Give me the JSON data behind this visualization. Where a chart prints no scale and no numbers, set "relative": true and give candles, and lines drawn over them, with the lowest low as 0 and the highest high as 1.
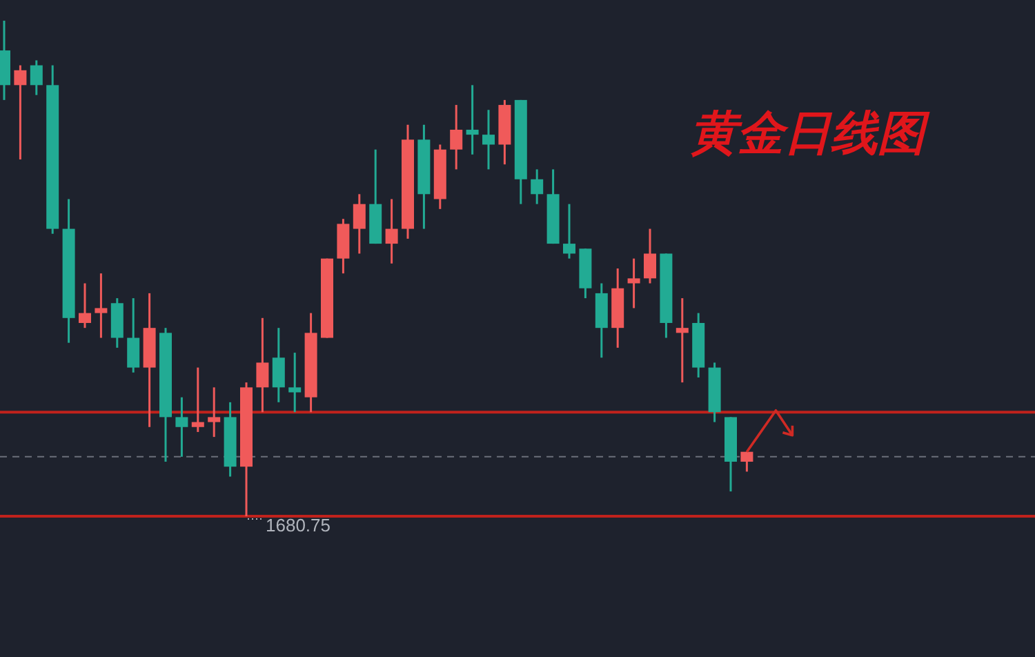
{
  "chart_data": {
    "type": "candlestick",
    "title": "黄金日线图",
    "relative": true,
    "categories": [
      null,
      null,
      null,
      null,
      null,
      null,
      null,
      null,
      null,
      null,
      null,
      null,
      null,
      null,
      null,
      null,
      null,
      null,
      null,
      null,
      null,
      null,
      null,
      null,
      null,
      null,
      null,
      null,
      null,
      null,
      null,
      null,
      null,
      null,
      null,
      null,
      null,
      null,
      null,
      null,
      null,
      null,
      null,
      null,
      null,
      null,
      null
    ],
    "ohlc": [
      [
        0.94,
        1.0,
        0.84,
        0.87
      ],
      [
        0.87,
        0.91,
        0.72,
        0.9
      ],
      [
        0.91,
        0.92,
        0.85,
        0.87
      ],
      [
        0.87,
        0.91,
        0.57,
        0.58
      ],
      [
        0.58,
        0.64,
        0.35,
        0.4
      ],
      [
        0.39,
        0.47,
        0.38,
        0.41
      ],
      [
        0.41,
        0.49,
        0.36,
        0.42
      ],
      [
        0.43,
        0.44,
        0.34,
        0.36
      ],
      [
        0.36,
        0.44,
        0.29,
        0.3
      ],
      [
        0.3,
        0.45,
        0.18,
        0.38
      ],
      [
        0.37,
        0.38,
        0.11,
        0.2
      ],
      [
        0.2,
        0.24,
        0.12,
        0.18
      ],
      [
        0.18,
        0.3,
        0.17,
        0.19
      ],
      [
        0.19,
        0.26,
        0.16,
        0.2
      ],
      [
        0.2,
        0.23,
        0.08,
        0.1
      ],
      [
        0.1,
        0.27,
        0.0,
        0.26
      ],
      [
        0.26,
        0.4,
        0.21,
        0.31
      ],
      [
        0.32,
        0.38,
        0.23,
        0.26
      ],
      [
        0.26,
        0.33,
        0.21,
        0.25
      ],
      [
        0.24,
        0.41,
        0.21,
        0.37
      ],
      [
        0.36,
        0.52,
        0.36,
        0.52
      ],
      [
        0.52,
        0.6,
        0.49,
        0.59
      ],
      [
        0.58,
        0.65,
        0.53,
        0.63
      ],
      [
        0.63,
        0.74,
        0.55,
        0.55
      ],
      [
        0.55,
        0.64,
        0.51,
        0.58
      ],
      [
        0.58,
        0.79,
        0.56,
        0.76
      ],
      [
        0.76,
        0.79,
        0.58,
        0.65
      ],
      [
        0.64,
        0.75,
        0.62,
        0.74
      ],
      [
        0.74,
        0.83,
        0.7,
        0.78
      ],
      [
        0.78,
        0.87,
        0.73,
        0.77
      ],
      [
        0.77,
        0.82,
        0.7,
        0.75
      ],
      [
        0.75,
        0.84,
        0.71,
        0.83
      ],
      [
        0.84,
        0.84,
        0.63,
        0.68
      ],
      [
        0.68,
        0.7,
        0.63,
        0.65
      ],
      [
        0.65,
        0.7,
        0.55,
        0.55
      ],
      [
        0.55,
        0.63,
        0.52,
        0.53
      ],
      [
        0.54,
        0.54,
        0.44,
        0.46
      ],
      [
        0.45,
        0.47,
        0.32,
        0.38
      ],
      [
        0.38,
        0.5,
        0.34,
        0.46
      ],
      [
        0.47,
        0.52,
        0.42,
        0.48
      ],
      [
        0.48,
        0.58,
        0.47,
        0.53
      ],
      [
        0.53,
        0.53,
        0.36,
        0.39
      ],
      [
        0.37,
        0.44,
        0.27,
        0.38
      ],
      [
        0.39,
        0.41,
        0.28,
        0.3
      ],
      [
        0.3,
        0.31,
        0.19,
        0.21
      ],
      [
        0.2,
        0.2,
        0.05,
        0.11
      ],
      [
        0.11,
        0.13,
        0.09,
        0.13
      ]
    ],
    "colors": [
      "#22ab94",
      "#f05a5a",
      "#22ab94",
      "#22ab94",
      "#22ab94",
      "#f05a5a",
      "#f05a5a",
      "#22ab94",
      "#22ab94",
      "#f05a5a",
      "#22ab94",
      "#22ab94",
      "#f05a5a",
      "#f05a5a",
      "#22ab94",
      "#f05a5a",
      "#f05a5a",
      "#22ab94",
      "#22ab94",
      "#f05a5a",
      "#f05a5a",
      "#f05a5a",
      "#f05a5a",
      "#22ab94",
      "#f05a5a",
      "#f05a5a",
      "#22ab94",
      "#f05a5a",
      "#f05a5a",
      "#22ab94",
      "#22ab94",
      "#f05a5a",
      "#22ab94",
      "#22ab94",
      "#22ab94",
      "#22ab94",
      "#22ab94",
      "#22ab94",
      "#f05a5a",
      "#f05a5a",
      "#f05a5a",
      "#22ab94",
      "#f05a5a",
      "#22ab94",
      "#22ab94",
      "#22ab94",
      "#f05a5a"
    ],
    "ref_lines": [
      {
        "axis": "y",
        "value": 0.21,
        "color": "#c0221c",
        "line_style": "solid"
      },
      {
        "axis": "y",
        "value": 0.0,
        "color": "#c0221c",
        "line_style": "solid"
      },
      {
        "axis": "y",
        "value": 0.12,
        "color": "#6b6f7a",
        "line_style": "dashed"
      }
    ],
    "annotations": [
      {
        "text": "1680.75",
        "y": 0.0
      }
    ]
  }
}
